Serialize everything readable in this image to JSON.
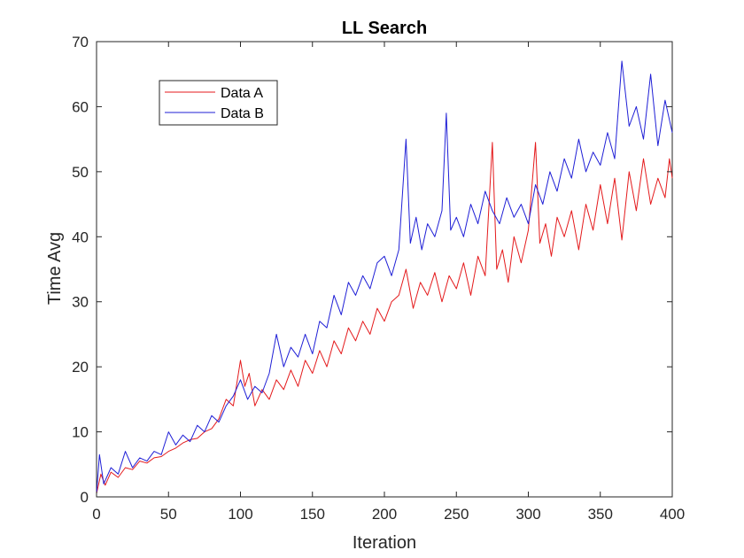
{
  "chart_data": {
    "type": "line",
    "title": "LL Search",
    "xlabel": "Iteration",
    "ylabel": "Time Avg",
    "xlim": [
      0,
      400
    ],
    "ylim": [
      0,
      70
    ],
    "xticks": [
      0,
      50,
      100,
      150,
      200,
      250,
      300,
      350,
      400
    ],
    "yticks": [
      0,
      10,
      20,
      30,
      40,
      50,
      60,
      70
    ],
    "x_tick_labels": [
      "0",
      "50",
      "100",
      "150",
      "200",
      "250",
      "300",
      "350",
      "400"
    ],
    "y_tick_labels": [
      "0",
      "10",
      "20",
      "30",
      "40",
      "50",
      "60",
      "70"
    ],
    "grid": false,
    "legend_position": "top-left",
    "series": [
      {
        "name": "Data A",
        "color": "#e41a1c",
        "points": [
          [
            0,
            0.5
          ],
          [
            3,
            3.5
          ],
          [
            6,
            1.8
          ],
          [
            10,
            3.8
          ],
          [
            15,
            3.0
          ],
          [
            20,
            4.5
          ],
          [
            25,
            4.2
          ],
          [
            30,
            5.5
          ],
          [
            35,
            5.2
          ],
          [
            40,
            6.0
          ],
          [
            45,
            6.2
          ],
          [
            50,
            7.0
          ],
          [
            55,
            7.5
          ],
          [
            60,
            8.3
          ],
          [
            65,
            8.8
          ],
          [
            70,
            9.0
          ],
          [
            75,
            10.0
          ],
          [
            80,
            10.5
          ],
          [
            85,
            12.0
          ],
          [
            90,
            15.0
          ],
          [
            95,
            14.0
          ],
          [
            100,
            21.0
          ],
          [
            103,
            17.0
          ],
          [
            106,
            19.0
          ],
          [
            110,
            14.0
          ],
          [
            115,
            16.5
          ],
          [
            120,
            15.0
          ],
          [
            125,
            18.0
          ],
          [
            130,
            16.5
          ],
          [
            135,
            19.5
          ],
          [
            140,
            17.0
          ],
          [
            145,
            21.0
          ],
          [
            150,
            19.0
          ],
          [
            155,
            22.5
          ],
          [
            160,
            20.0
          ],
          [
            165,
            24.0
          ],
          [
            170,
            22.0
          ],
          [
            175,
            26.0
          ],
          [
            180,
            24.0
          ],
          [
            185,
            27.0
          ],
          [
            190,
            25.0
          ],
          [
            195,
            29.0
          ],
          [
            200,
            27.0
          ],
          [
            205,
            30.0
          ],
          [
            210,
            31.0
          ],
          [
            215,
            35.0
          ],
          [
            220,
            29.0
          ],
          [
            225,
            33.0
          ],
          [
            230,
            31.0
          ],
          [
            235,
            34.5
          ],
          [
            240,
            30.0
          ],
          [
            245,
            34.0
          ],
          [
            250,
            32.0
          ],
          [
            255,
            36.0
          ],
          [
            260,
            31.0
          ],
          [
            265,
            37.0
          ],
          [
            270,
            34.0
          ],
          [
            275,
            54.5
          ],
          [
            278,
            35.0
          ],
          [
            282,
            38.0
          ],
          [
            286,
            33.0
          ],
          [
            290,
            40.0
          ],
          [
            295,
            36.0
          ],
          [
            300,
            41.0
          ],
          [
            305,
            54.5
          ],
          [
            308,
            39.0
          ],
          [
            312,
            42.0
          ],
          [
            316,
            37.0
          ],
          [
            320,
            43.0
          ],
          [
            325,
            40.0
          ],
          [
            330,
            44.0
          ],
          [
            335,
            38.0
          ],
          [
            340,
            45.0
          ],
          [
            345,
            41.0
          ],
          [
            350,
            48.0
          ],
          [
            355,
            42.0
          ],
          [
            360,
            49.0
          ],
          [
            365,
            39.5
          ],
          [
            370,
            50.0
          ],
          [
            375,
            44.0
          ],
          [
            380,
            52.0
          ],
          [
            385,
            45.0
          ],
          [
            390,
            49.0
          ],
          [
            395,
            46.0
          ],
          [
            398,
            52.0
          ],
          [
            400,
            49.0
          ]
        ]
      },
      {
        "name": "Data B",
        "color": "#1f1fd6",
        "points": [
          [
            0,
            0.5
          ],
          [
            2,
            6.5
          ],
          [
            5,
            2.0
          ],
          [
            10,
            4.5
          ],
          [
            15,
            3.5
          ],
          [
            20,
            7.0
          ],
          [
            25,
            4.5
          ],
          [
            30,
            6.0
          ],
          [
            35,
            5.5
          ],
          [
            40,
            7.0
          ],
          [
            45,
            6.5
          ],
          [
            50,
            10.0
          ],
          [
            55,
            8.0
          ],
          [
            60,
            9.5
          ],
          [
            65,
            8.5
          ],
          [
            70,
            11.0
          ],
          [
            75,
            10.0
          ],
          [
            80,
            12.5
          ],
          [
            85,
            11.5
          ],
          [
            90,
            14.0
          ],
          [
            95,
            15.5
          ],
          [
            100,
            18.0
          ],
          [
            105,
            15.0
          ],
          [
            110,
            17.0
          ],
          [
            115,
            16.0
          ],
          [
            120,
            19.0
          ],
          [
            125,
            25.0
          ],
          [
            130,
            20.0
          ],
          [
            135,
            23.0
          ],
          [
            140,
            21.5
          ],
          [
            145,
            25.0
          ],
          [
            150,
            22.0
          ],
          [
            155,
            27.0
          ],
          [
            160,
            26.0
          ],
          [
            165,
            31.0
          ],
          [
            170,
            28.0
          ],
          [
            175,
            33.0
          ],
          [
            180,
            31.0
          ],
          [
            185,
            34.0
          ],
          [
            190,
            32.0
          ],
          [
            195,
            36.0
          ],
          [
            200,
            37.0
          ],
          [
            205,
            34.0
          ],
          [
            210,
            38.0
          ],
          [
            215,
            55.0
          ],
          [
            218,
            39.0
          ],
          [
            222,
            43.0
          ],
          [
            226,
            38.0
          ],
          [
            230,
            42.0
          ],
          [
            235,
            40.0
          ],
          [
            240,
            44.0
          ],
          [
            243,
            59.0
          ],
          [
            246,
            41.0
          ],
          [
            250,
            43.0
          ],
          [
            255,
            40.0
          ],
          [
            260,
            45.0
          ],
          [
            265,
            42.0
          ],
          [
            270,
            47.0
          ],
          [
            275,
            44.0
          ],
          [
            280,
            42.0
          ],
          [
            285,
            46.0
          ],
          [
            290,
            43.0
          ],
          [
            295,
            45.0
          ],
          [
            300,
            42.0
          ],
          [
            305,
            48.0
          ],
          [
            310,
            45.0
          ],
          [
            315,
            50.0
          ],
          [
            320,
            47.0
          ],
          [
            325,
            52.0
          ],
          [
            330,
            49.0
          ],
          [
            335,
            55.0
          ],
          [
            340,
            50.0
          ],
          [
            345,
            53.0
          ],
          [
            350,
            51.0
          ],
          [
            355,
            56.0
          ],
          [
            360,
            52.0
          ],
          [
            365,
            67.0
          ],
          [
            370,
            57.0
          ],
          [
            375,
            60.0
          ],
          [
            380,
            55.0
          ],
          [
            385,
            65.0
          ],
          [
            390,
            54.0
          ],
          [
            395,
            61.0
          ],
          [
            400,
            56.0
          ]
        ]
      }
    ]
  }
}
